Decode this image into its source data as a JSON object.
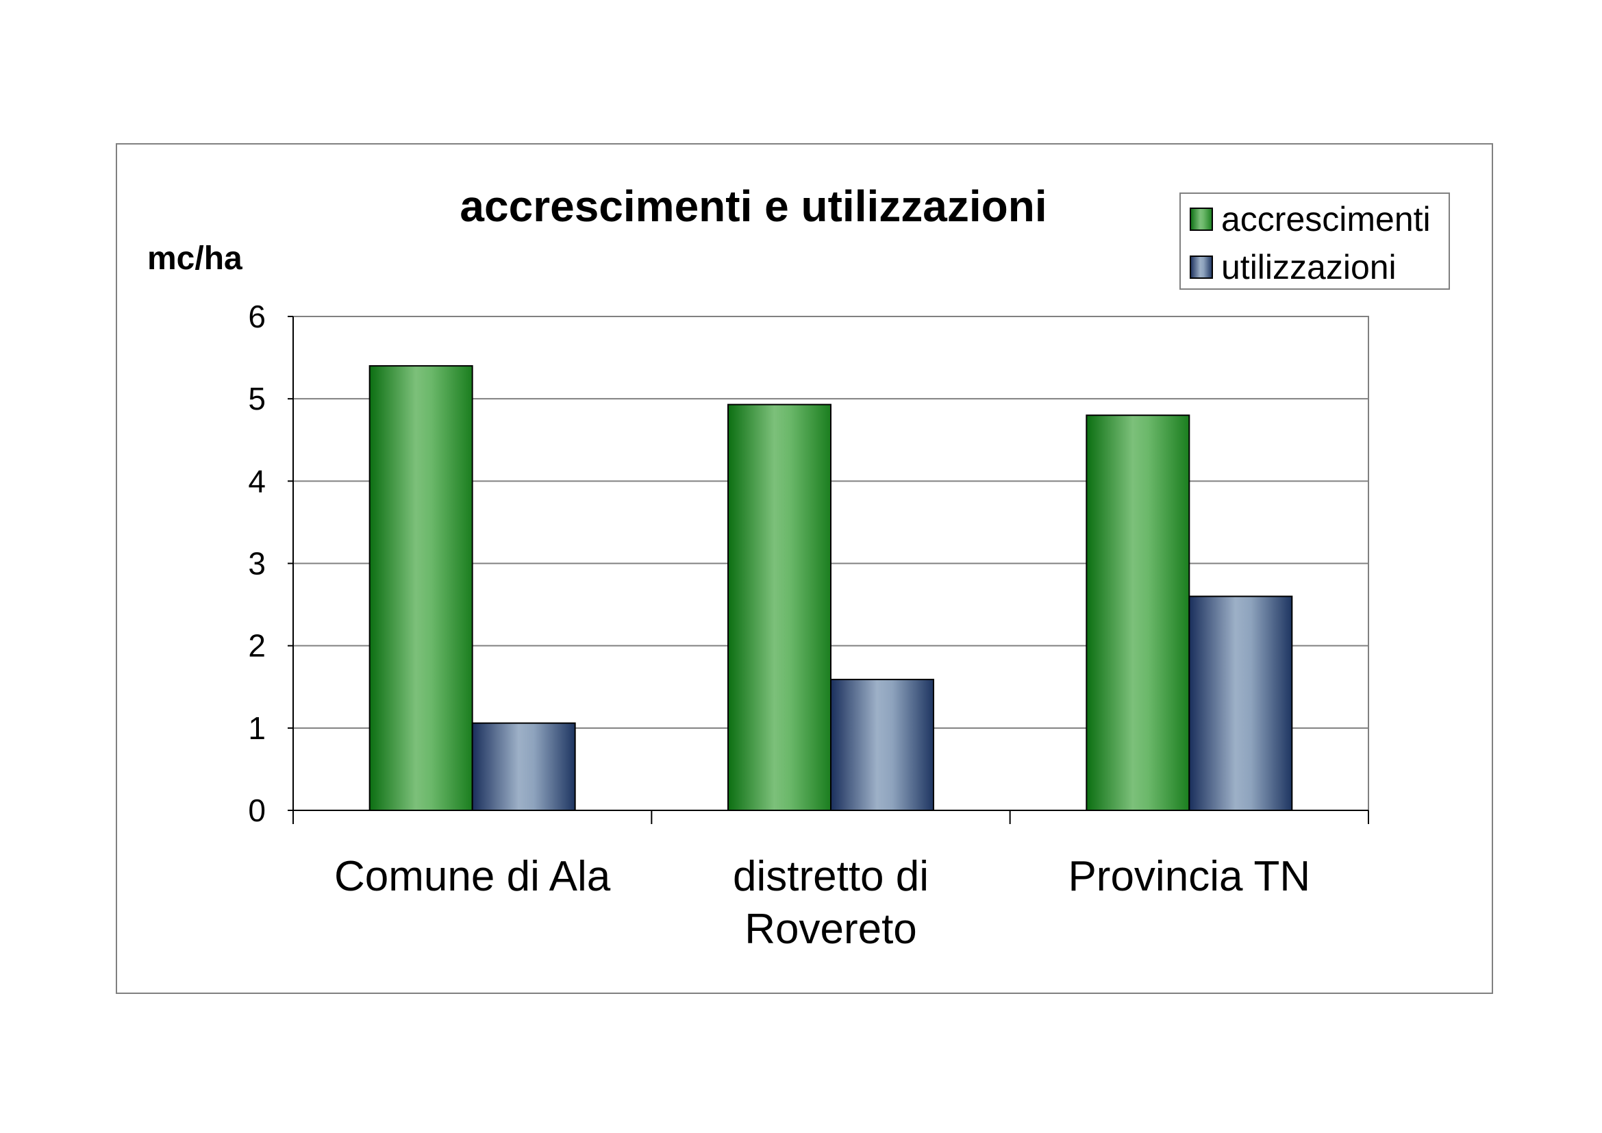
{
  "chart_data": {
    "type": "bar",
    "title": "accrescimenti e utilizzazioni",
    "ylabel": "mc/ha",
    "xlabel": "",
    "ylim": [
      0,
      6
    ],
    "yticks": [
      "0",
      "1",
      "2",
      "3",
      "4",
      "5",
      "6"
    ],
    "grid": true,
    "legend_position": "top-right",
    "categories": [
      [
        "Comune di Ala"
      ],
      [
        "distretto di",
        "Rovereto"
      ],
      [
        "Provincia TN"
      ]
    ],
    "series": [
      {
        "name": "accrescimenti",
        "values": [
          5.4,
          4.93,
          4.8
        ],
        "color": "#3a9a3a"
      },
      {
        "name": "utilizzazioni",
        "values": [
          1.06,
          1.59,
          2.6
        ],
        "color": "#6f87a8"
      }
    ]
  }
}
